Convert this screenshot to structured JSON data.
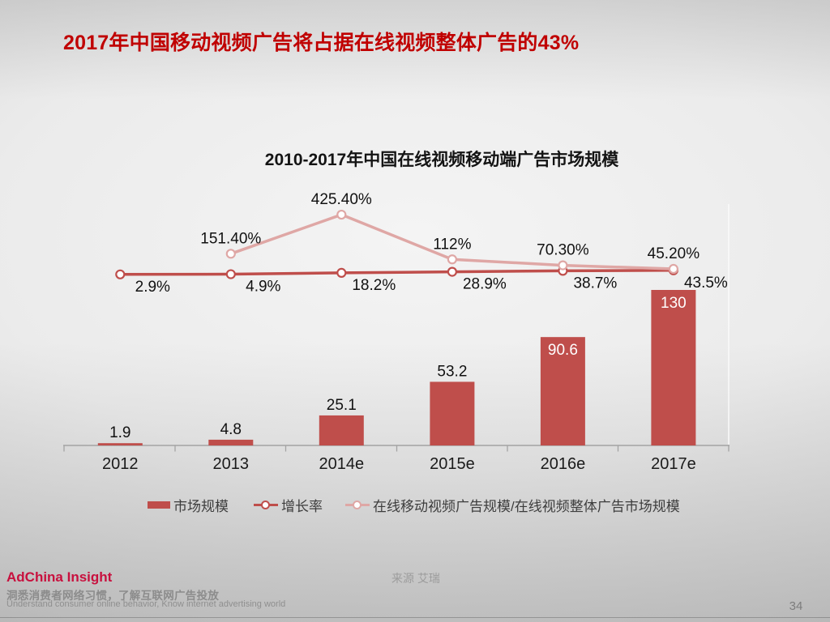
{
  "slide": {
    "title": "2017年中国移动视频广告将占据在线视频整体广告的43%",
    "page_number": "34",
    "source": "来源 艾瑞",
    "footer": {
      "brand": "AdChina Insight",
      "tagline_cn": "洞悉消费者网络习惯，了解互联网广告投放",
      "tagline_en": "Understand consumer online behavior, Know internet advertising world"
    }
  },
  "chart_data": {
    "type": "bar",
    "subtype": "bar+line combo",
    "title": "2010-2017年中国在线视频移动端广告市场规模",
    "categories": [
      "2012",
      "2013",
      "2014e",
      "2015e",
      "2016e",
      "2017e"
    ],
    "series": [
      {
        "name": "市场规模",
        "type": "bar",
        "color": "#bf4e4b",
        "values": [
          1.9,
          4.8,
          25.1,
          53.2,
          90.6,
          130
        ],
        "labels": [
          "1.9",
          "4.8",
          "25.1",
          "53.2",
          "90.6",
          "130"
        ]
      },
      {
        "name": "增长率",
        "type": "line",
        "color": "#bf4e4b",
        "marker": "circle-white-fill",
        "label_position": "below",
        "values": [
          2.9,
          4.9,
          18.2,
          28.9,
          38.7,
          43.5
        ],
        "labels": [
          "2.9%",
          "4.9%",
          "18.2%",
          "28.9%",
          "38.7%",
          "43.5%"
        ]
      },
      {
        "name": "在线移动视频广告规模/在线视频整体广告市场规模",
        "type": "line",
        "color": "#dfa7a5",
        "marker": "circle-white-fill",
        "label_position": "above",
        "values": [
          null,
          151.4,
          425.4,
          112,
          70.3,
          45.2
        ],
        "labels": [
          "",
          "151.40%",
          "425.40%",
          "112%",
          "70.30%",
          "45.20%"
        ]
      }
    ],
    "legend": [
      {
        "label": "市场规模",
        "swatch": "bar",
        "color": "#bf4e4b"
      },
      {
        "label": "增长率",
        "swatch": "line",
        "color": "#bf4e4b"
      },
      {
        "label": "在线移动视频广告规模/在线视频整体广告市场规模",
        "swatch": "line",
        "color": "#dfa7a5"
      }
    ],
    "axes": {
      "x_labels": [
        "2012",
        "2013",
        "2014e",
        "2015e",
        "2016e",
        "2017e"
      ],
      "y_left_visible": false,
      "y_right_visible": true,
      "gridlines": false
    },
    "colors": {
      "bar": "#bf4e4b",
      "line_dark": "#bf4e4b",
      "line_pale": "#dfa7a5",
      "title_red": "#c00000",
      "brand_red": "#c8103e"
    }
  }
}
